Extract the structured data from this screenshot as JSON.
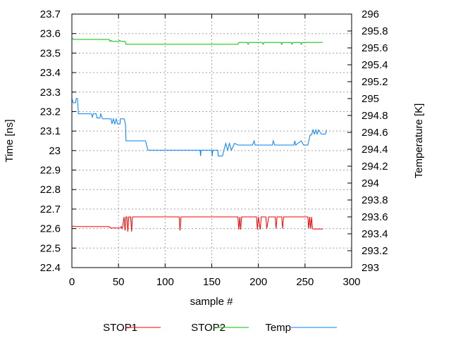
{
  "chart_data": {
    "type": "line",
    "title": "",
    "xlabel": "sample #",
    "ylabel": "Time [ns]",
    "y2label": "Temperature [K]",
    "xlim": [
      0,
      300
    ],
    "ylim": [
      22.4,
      23.7
    ],
    "y2lim": [
      293,
      296
    ],
    "x_ticks": [
      "0",
      "50",
      "100",
      "150",
      "200",
      "250",
      "300"
    ],
    "y_ticks": [
      "22.4",
      "22.5",
      "22.6",
      "22.7",
      "22.8",
      "22.9",
      "23",
      "23.1",
      "23.2",
      "23.3",
      "23.4",
      "23.5",
      "23.6",
      "23.7"
    ],
    "y2_ticks": [
      "293",
      "293.2",
      "293.4",
      "293.6",
      "293.8",
      "294",
      "294.2",
      "294.4",
      "294.6",
      "294.8",
      "295",
      "295.2",
      "295.4",
      "295.6",
      "295.8",
      "296"
    ],
    "grid": true,
    "legend_position": "bottom",
    "series": [
      {
        "name": "STOP1",
        "color": "#ff0000",
        "axis": "y",
        "points": [
          [
            0,
            22.61
          ],
          [
            2,
            22.613
          ],
          [
            4,
            22.61
          ],
          [
            40,
            22.61
          ],
          [
            41,
            22.603
          ],
          [
            52,
            22.603
          ],
          [
            53,
            22.61
          ],
          [
            54,
            22.6
          ],
          [
            56,
            22.66
          ],
          [
            57,
            22.59
          ],
          [
            58,
            22.66
          ],
          [
            59,
            22.66
          ],
          [
            60,
            22.585
          ],
          [
            61,
            22.66
          ],
          [
            63,
            22.66
          ],
          [
            64,
            22.585
          ],
          [
            65,
            22.66
          ],
          [
            115,
            22.66
          ],
          [
            116,
            22.59
          ],
          [
            117,
            22.66
          ],
          [
            178,
            22.66
          ],
          [
            179,
            22.595
          ],
          [
            180,
            22.66
          ],
          [
            181,
            22.595
          ],
          [
            182,
            22.66
          ],
          [
            198,
            22.66
          ],
          [
            199,
            22.595
          ],
          [
            200,
            22.66
          ],
          [
            202,
            22.595
          ],
          [
            203,
            22.66
          ],
          [
            208,
            22.66
          ],
          [
            209,
            22.6
          ],
          [
            211,
            22.66
          ],
          [
            218,
            22.66
          ],
          [
            219,
            22.6
          ],
          [
            220,
            22.66
          ],
          [
            225,
            22.66
          ],
          [
            226,
            22.6
          ],
          [
            227,
            22.66
          ],
          [
            253,
            22.66
          ],
          [
            254,
            22.6
          ],
          [
            255,
            22.66
          ],
          [
            256,
            22.6
          ],
          [
            257,
            22.66
          ],
          [
            258,
            22.6
          ],
          [
            259,
            22.598
          ],
          [
            269,
            22.598
          ]
        ]
      },
      {
        "name": "STOP2",
        "color": "#00c000",
        "axis": "y",
        "points": [
          [
            0,
            23.575
          ],
          [
            3,
            23.57
          ],
          [
            40,
            23.57
          ],
          [
            41,
            23.56
          ],
          [
            42,
            23.565
          ],
          [
            43,
            23.56
          ],
          [
            50,
            23.56
          ],
          [
            51,
            23.565
          ],
          [
            53,
            23.56
          ],
          [
            57,
            23.56
          ],
          [
            58,
            23.545
          ],
          [
            178,
            23.545
          ],
          [
            179,
            23.555
          ],
          [
            188,
            23.555
          ],
          [
            189,
            23.545
          ],
          [
            190,
            23.555
          ],
          [
            204,
            23.555
          ],
          [
            205,
            23.545
          ],
          [
            206,
            23.555
          ],
          [
            224,
            23.555
          ],
          [
            225,
            23.545
          ],
          [
            226,
            23.555
          ],
          [
            235,
            23.555
          ],
          [
            236,
            23.545
          ],
          [
            237,
            23.555
          ],
          [
            245,
            23.555
          ],
          [
            246,
            23.545
          ],
          [
            247,
            23.555
          ],
          [
            269,
            23.555
          ]
        ]
      },
      {
        "name": "Temp",
        "color": "#0080ff",
        "axis": "y2",
        "points": [
          [
            0,
            295.0
          ],
          [
            1.5,
            294.95
          ],
          [
            4,
            294.95
          ],
          [
            4.5,
            295.0
          ],
          [
            6,
            295.0
          ],
          [
            7,
            294.82
          ],
          [
            21,
            294.82
          ],
          [
            22,
            294.78
          ],
          [
            23,
            294.82
          ],
          [
            26,
            294.82
          ],
          [
            27,
            294.77
          ],
          [
            30,
            294.77
          ],
          [
            31,
            294.82
          ],
          [
            32.5,
            294.77
          ],
          [
            33,
            294.76
          ],
          [
            42,
            294.76
          ],
          [
            43,
            294.7
          ],
          [
            44.5,
            294.76
          ],
          [
            46,
            294.7
          ],
          [
            47.5,
            294.76
          ],
          [
            49,
            294.7
          ],
          [
            51.5,
            294.7
          ],
          [
            52,
            294.76
          ],
          [
            56,
            294.76
          ],
          [
            57.5,
            294.7
          ],
          [
            58,
            294.5
          ],
          [
            79,
            294.5
          ],
          [
            81.5,
            294.39
          ],
          [
            137.5,
            294.39
          ],
          [
            138,
            294.32
          ],
          [
            138.5,
            294.39
          ],
          [
            150,
            294.39
          ],
          [
            150.5,
            294.32
          ],
          [
            151,
            294.39
          ],
          [
            156.5,
            294.39
          ],
          [
            157,
            294.32
          ],
          [
            161.5,
            294.32
          ],
          [
            163,
            294.39
          ],
          [
            165,
            294.47
          ],
          [
            167,
            294.39
          ],
          [
            169,
            294.47
          ],
          [
            171,
            294.39
          ],
          [
            174.5,
            294.47
          ],
          [
            178,
            294.45
          ],
          [
            193.5,
            294.45
          ],
          [
            195.5,
            294.5
          ],
          [
            196.5,
            294.45
          ],
          [
            215,
            294.45
          ],
          [
            216,
            294.5
          ],
          [
            217.5,
            294.45
          ],
          [
            238,
            294.45
          ],
          [
            239,
            294.5
          ],
          [
            240,
            294.45
          ],
          [
            246,
            294.5
          ],
          [
            248.5,
            294.45
          ],
          [
            253,
            294.45
          ],
          [
            255.5,
            294.57
          ],
          [
            257,
            294.57
          ],
          [
            258.5,
            294.63
          ],
          [
            260,
            294.58
          ],
          [
            261.5,
            294.63
          ],
          [
            263,
            294.58
          ],
          [
            264.5,
            294.63
          ],
          [
            267.5,
            294.58
          ],
          [
            272,
            294.58
          ],
          [
            273,
            294.63
          ]
        ]
      }
    ]
  }
}
